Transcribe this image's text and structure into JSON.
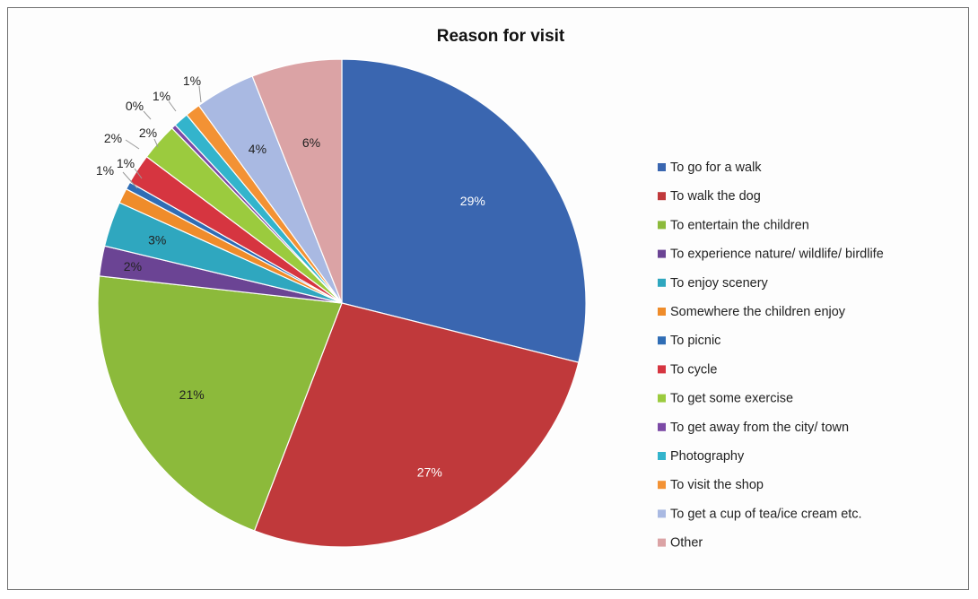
{
  "chart_data": {
    "type": "pie",
    "title": "Reason for visit",
    "legend_position": "right",
    "slices": [
      {
        "label": "To go for a walk",
        "value": 29,
        "display": "29%",
        "color": "#3a66b0"
      },
      {
        "label": "To walk the dog",
        "value": 27,
        "display": "27%",
        "color": "#c0393b"
      },
      {
        "label": "To entertain the children",
        "value": 21,
        "display": "21%",
        "color": "#8cba3b"
      },
      {
        "label": "To experience nature/ wildlife/ birdlife",
        "value": 2,
        "display": "2%",
        "color": "#6b4494"
      },
      {
        "label": "To enjoy scenery",
        "value": 3,
        "display": "3%",
        "color": "#2fa7bf"
      },
      {
        "label": "Somewhere the children enjoy",
        "value": 1,
        "display": "1%",
        "color": "#ef8c2a"
      },
      {
        "label": "To picnic",
        "value": 0.5,
        "display": "1%",
        "color": "#2f6db5"
      },
      {
        "label": "To cycle",
        "value": 2,
        "display": "2%",
        "color": "#d63540"
      },
      {
        "label": "To get some exercise",
        "value": 2.5,
        "display": "2%",
        "color": "#9bcb3e"
      },
      {
        "label": "To get away from the city/ town",
        "value": 0.3,
        "display": "0%",
        "color": "#7c4aa6"
      },
      {
        "label": "Photography",
        "value": 1,
        "display": "1%",
        "color": "#33b4cc"
      },
      {
        "label": "To visit the shop",
        "value": 1,
        "display": "1%",
        "color": "#f39234"
      },
      {
        "label": "To get a cup of tea/ice cream etc.",
        "value": 4,
        "display": "4%",
        "color": "#a9b9e2"
      },
      {
        "label": "Other",
        "value": 6,
        "display": "6%",
        "color": "#dba3a5"
      }
    ]
  }
}
